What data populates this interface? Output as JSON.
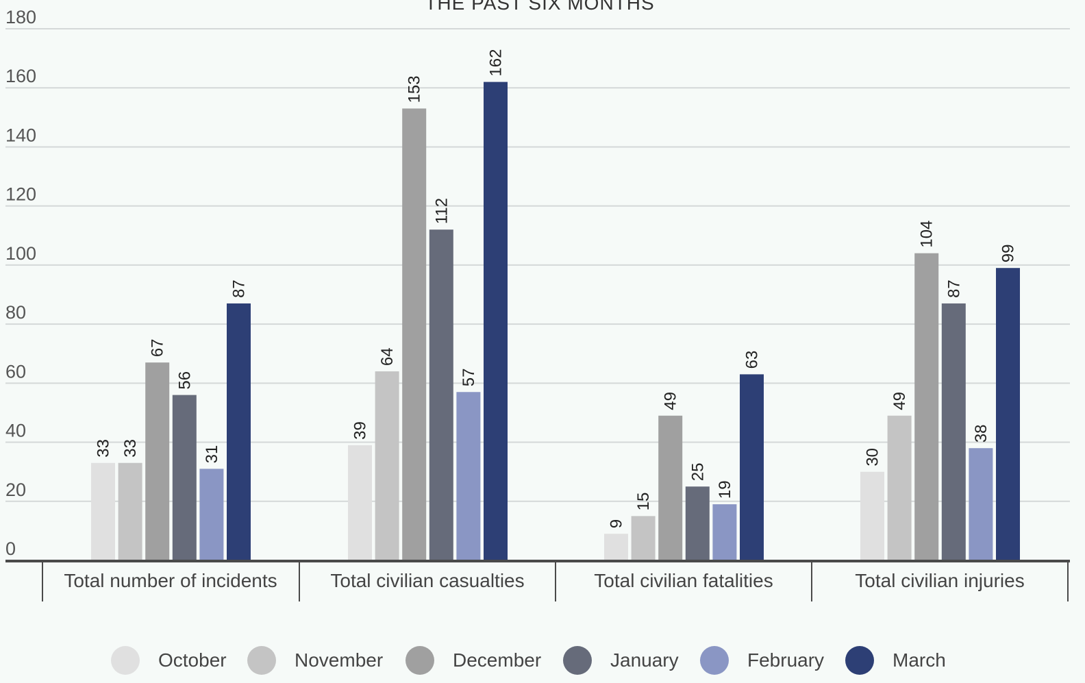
{
  "chart_data": {
    "type": "bar",
    "title": "THE PAST SIX MONTHS",
    "xlabel": "",
    "ylabel": "",
    "ylim": [
      0,
      180
    ],
    "yticks": [
      0,
      20,
      40,
      60,
      80,
      100,
      120,
      140,
      160,
      180
    ],
    "grid": true,
    "legend_position": "bottom",
    "categories": [
      "Total number of incidents",
      "Total civilian casualties",
      "Total civilian fatalities",
      "Total civilian injuries"
    ],
    "series": [
      {
        "name": "October",
        "color": "#e0e0e0",
        "values": [
          33,
          39,
          9,
          30
        ]
      },
      {
        "name": "November",
        "color": "#c4c4c4",
        "values": [
          33,
          64,
          15,
          49
        ]
      },
      {
        "name": "December",
        "color": "#a0a0a0",
        "values": [
          67,
          153,
          49,
          104
        ]
      },
      {
        "name": "January",
        "color": "#666b7a",
        "values": [
          56,
          112,
          25,
          87
        ]
      },
      {
        "name": "February",
        "color": "#8a96c4",
        "values": [
          31,
          57,
          19,
          38
        ]
      },
      {
        "name": "March",
        "color": "#2d3f75",
        "values": [
          87,
          162,
          63,
          99
        ]
      }
    ]
  }
}
